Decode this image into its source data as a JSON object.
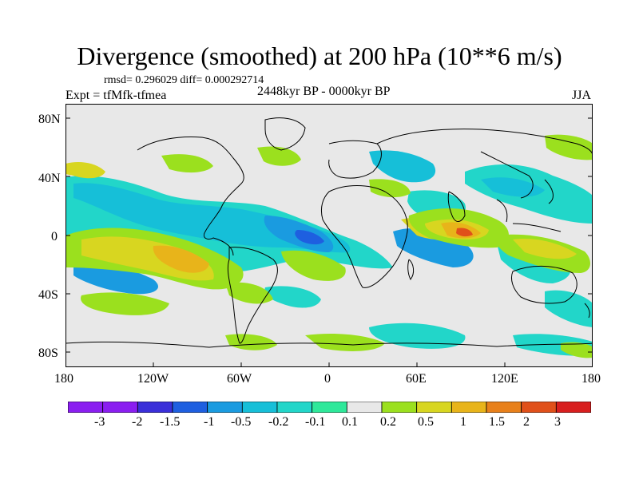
{
  "title": "Divergence (smoothed) at 200 hPa (10**6 m/s)",
  "stats_line": "rmsd= 0.296029 diff= 0.000292714",
  "experiment_line": "Expt = tfMfk-tfmea",
  "period_line": "2448kyr BP - 0000kyr BP",
  "season": "JJA",
  "axes": {
    "y_ticks": [
      "80N",
      "40N",
      "0",
      "40S",
      "80S"
    ],
    "x_ticks": [
      "180",
      "120W",
      "60W",
      "0",
      "60E",
      "120E",
      "180"
    ]
  },
  "colorbar": {
    "labels": [
      "-3",
      "-2",
      "-1.5",
      "-1",
      "-0.5",
      "-0.2",
      "-0.1",
      "0.1",
      "0.2",
      "0.5",
      "1",
      "1.5",
      "2",
      "3"
    ],
    "colors": [
      "#8a1ef0",
      "#3a2fd9",
      "#1e5fe0",
      "#1a9be0",
      "#16bfd8",
      "#22d6c9",
      "#2ee89a",
      "#e8e8e8",
      "#9be01e",
      "#d8d620",
      "#e8b41a",
      "#e8801a",
      "#e0501a",
      "#d81e1e"
    ]
  },
  "map_colors": {
    "background": "#e8e8e8",
    "neg_weak": "#22d6c9",
    "neg_mid": "#16bfd8",
    "neg_strong": "#1a9be0",
    "neg_extreme": "#1e5fe0",
    "pos_weak": "#9be01e",
    "pos_mid": "#d8d620",
    "pos_strong": "#e8b41a",
    "pos_extreme": "#e8801a",
    "pos_peak": "#e0501a"
  }
}
